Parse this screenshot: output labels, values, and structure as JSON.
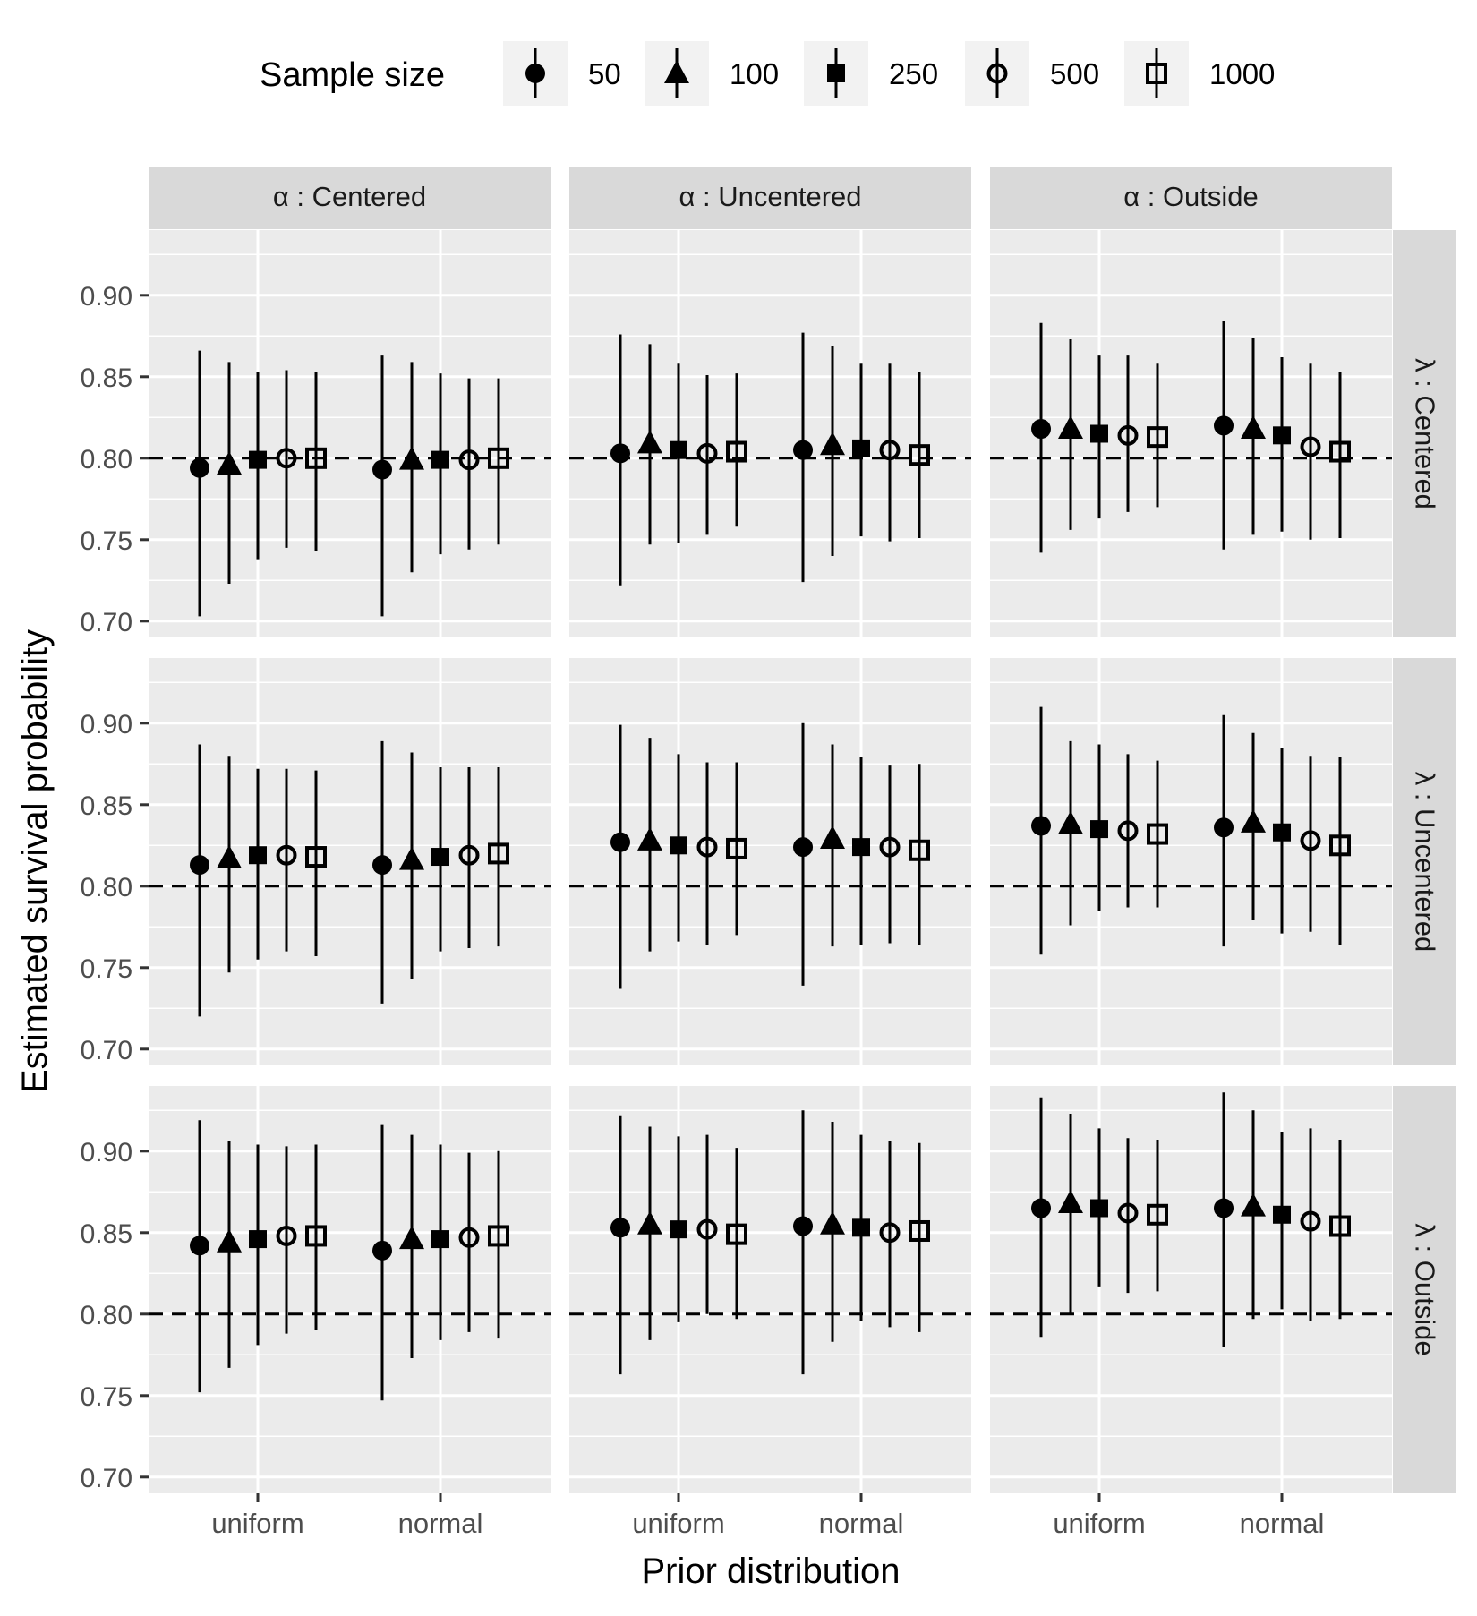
{
  "chart_data": {
    "type": "scatter",
    "subtype": "point-range faceted grid",
    "legend": {
      "title": "Sample size",
      "position": "top",
      "entries": [
        {
          "label": "50",
          "shape": "filled-circle"
        },
        {
          "label": "100",
          "shape": "filled-triangle"
        },
        {
          "label": "250",
          "shape": "filled-square"
        },
        {
          "label": "500",
          "shape": "open-circle"
        },
        {
          "label": "1000",
          "shape": "open-square"
        }
      ]
    },
    "xlabel": "Prior distribution",
    "ylabel": "Estimated survival probability",
    "x_categories": [
      "uniform",
      "normal"
    ],
    "ylim": [
      0.69,
      0.94
    ],
    "yticks": [
      0.7,
      0.75,
      0.8,
      0.85,
      0.9
    ],
    "ytick_labels": [
      "0.70",
      "0.75",
      "0.80",
      "0.85",
      "0.90"
    ],
    "reference_line": 0.8,
    "grid": true,
    "col_facet_labels": [
      "α : Centered",
      "α : Uncentered",
      "α : Outside"
    ],
    "row_facet_labels": [
      "λ : Centered",
      "λ : Uncentered",
      "λ : Outside"
    ],
    "panels": [
      {
        "row": 0,
        "col": 0,
        "uniform": {
          "est": [
            0.794,
            0.796,
            0.799,
            0.8,
            0.8
          ],
          "low": [
            0.703,
            0.723,
            0.738,
            0.745,
            0.743
          ],
          "high": [
            0.866,
            0.859,
            0.853,
            0.854,
            0.853
          ]
        },
        "normal": {
          "est": [
            0.793,
            0.799,
            0.799,
            0.799,
            0.8
          ],
          "low": [
            0.703,
            0.73,
            0.741,
            0.744,
            0.747
          ],
          "high": [
            0.863,
            0.859,
            0.852,
            0.849,
            0.849
          ]
        }
      },
      {
        "row": 0,
        "col": 1,
        "uniform": {
          "est": [
            0.803,
            0.809,
            0.805,
            0.803,
            0.804
          ],
          "low": [
            0.722,
            0.747,
            0.748,
            0.753,
            0.758
          ],
          "high": [
            0.876,
            0.87,
            0.858,
            0.851,
            0.852
          ]
        },
        "normal": {
          "est": [
            0.805,
            0.808,
            0.806,
            0.805,
            0.802
          ],
          "low": [
            0.724,
            0.74,
            0.752,
            0.749,
            0.751
          ],
          "high": [
            0.877,
            0.869,
            0.858,
            0.858,
            0.853
          ]
        }
      },
      {
        "row": 0,
        "col": 2,
        "uniform": {
          "est": [
            0.818,
            0.818,
            0.815,
            0.814,
            0.813
          ],
          "low": [
            0.742,
            0.756,
            0.763,
            0.767,
            0.77
          ],
          "high": [
            0.883,
            0.873,
            0.863,
            0.863,
            0.858
          ]
        },
        "normal": {
          "est": [
            0.82,
            0.818,
            0.814,
            0.807,
            0.804
          ],
          "low": [
            0.744,
            0.753,
            0.755,
            0.75,
            0.751
          ],
          "high": [
            0.884,
            0.874,
            0.862,
            0.858,
            0.853
          ]
        }
      },
      {
        "row": 1,
        "col": 0,
        "uniform": {
          "est": [
            0.813,
            0.817,
            0.819,
            0.819,
            0.818
          ],
          "low": [
            0.72,
            0.747,
            0.755,
            0.76,
            0.757
          ],
          "high": [
            0.887,
            0.88,
            0.872,
            0.872,
            0.871
          ]
        },
        "normal": {
          "est": [
            0.813,
            0.816,
            0.818,
            0.819,
            0.82
          ],
          "low": [
            0.728,
            0.743,
            0.76,
            0.762,
            0.763
          ],
          "high": [
            0.889,
            0.882,
            0.873,
            0.873,
            0.873
          ]
        }
      },
      {
        "row": 1,
        "col": 1,
        "uniform": {
          "est": [
            0.827,
            0.828,
            0.825,
            0.824,
            0.823
          ],
          "low": [
            0.737,
            0.76,
            0.766,
            0.764,
            0.77
          ],
          "high": [
            0.899,
            0.891,
            0.881,
            0.876,
            0.876
          ]
        },
        "normal": {
          "est": [
            0.824,
            0.829,
            0.824,
            0.824,
            0.822
          ],
          "low": [
            0.739,
            0.763,
            0.764,
            0.765,
            0.764
          ],
          "high": [
            0.9,
            0.887,
            0.879,
            0.874,
            0.875
          ]
        }
      },
      {
        "row": 1,
        "col": 2,
        "uniform": {
          "est": [
            0.837,
            0.838,
            0.835,
            0.834,
            0.832
          ],
          "low": [
            0.758,
            0.776,
            0.785,
            0.787,
            0.787
          ],
          "high": [
            0.91,
            0.889,
            0.887,
            0.881,
            0.877
          ]
        },
        "normal": {
          "est": [
            0.836,
            0.839,
            0.833,
            0.828,
            0.825
          ],
          "low": [
            0.763,
            0.779,
            0.771,
            0.772,
            0.764
          ],
          "high": [
            0.905,
            0.894,
            0.885,
            0.88,
            0.879
          ]
        }
      },
      {
        "row": 2,
        "col": 0,
        "uniform": {
          "est": [
            0.842,
            0.844,
            0.846,
            0.848,
            0.848
          ],
          "low": [
            0.752,
            0.767,
            0.781,
            0.788,
            0.79
          ],
          "high": [
            0.919,
            0.906,
            0.904,
            0.903,
            0.904
          ]
        },
        "normal": {
          "est": [
            0.839,
            0.846,
            0.846,
            0.847,
            0.848
          ],
          "low": [
            0.747,
            0.773,
            0.784,
            0.789,
            0.785
          ],
          "high": [
            0.916,
            0.91,
            0.904,
            0.899,
            0.9
          ]
        }
      },
      {
        "row": 2,
        "col": 1,
        "uniform": {
          "est": [
            0.853,
            0.855,
            0.852,
            0.852,
            0.849
          ],
          "low": [
            0.763,
            0.784,
            0.795,
            0.8,
            0.797
          ],
          "high": [
            0.922,
            0.915,
            0.909,
            0.91,
            0.902
          ]
        },
        "normal": {
          "est": [
            0.854,
            0.855,
            0.853,
            0.85,
            0.851
          ],
          "low": [
            0.763,
            0.783,
            0.796,
            0.792,
            0.789
          ],
          "high": [
            0.925,
            0.918,
            0.91,
            0.906,
            0.905
          ]
        }
      },
      {
        "row": 2,
        "col": 2,
        "uniform": {
          "est": [
            0.865,
            0.868,
            0.865,
            0.862,
            0.861
          ],
          "low": [
            0.786,
            0.8,
            0.817,
            0.813,
            0.814
          ],
          "high": [
            0.933,
            0.923,
            0.914,
            0.908,
            0.907
          ]
        },
        "normal": {
          "est": [
            0.865,
            0.866,
            0.861,
            0.857,
            0.854
          ],
          "low": [
            0.78,
            0.797,
            0.803,
            0.796,
            0.797
          ],
          "high": [
            0.936,
            0.925,
            0.912,
            0.914,
            0.907
          ]
        }
      }
    ]
  }
}
